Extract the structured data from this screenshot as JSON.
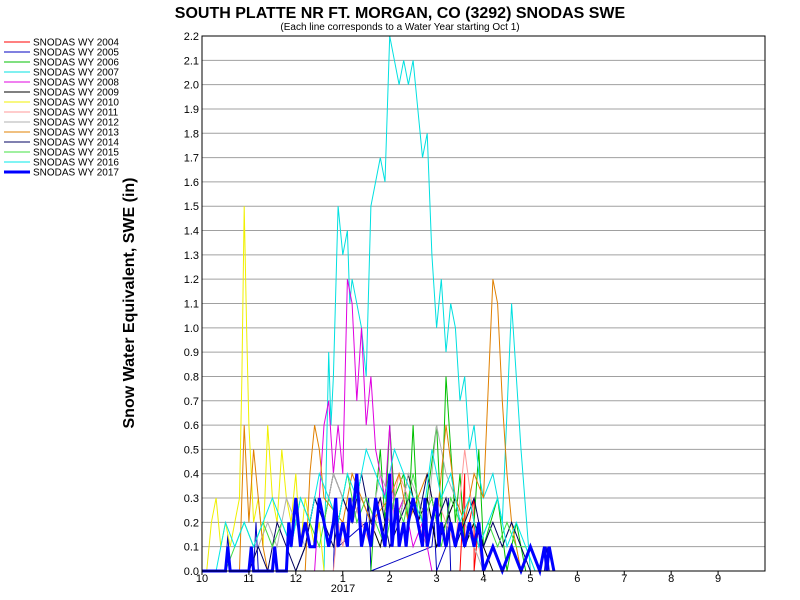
{
  "chart_data": {
    "type": "line",
    "title": "SOUTH PLATTE NR FT. MORGAN, CO (3292) SNODAS SWE",
    "subtitle": "(Each line corresponds to a Water Year starting Oct 1)",
    "xlabel": "",
    "ylabel": "Snow Water Equivalent, SWE (in)",
    "ylim": [
      0,
      2.2
    ],
    "xlim": [
      0,
      12
    ],
    "grid": true,
    "legend_position": "left",
    "y_ticks": [
      "0.0",
      "0.1",
      "0.2",
      "0.3",
      "0.4",
      "0.5",
      "0.6",
      "0.7",
      "0.8",
      "0.9",
      "1.0",
      "1.1",
      "1.2",
      "1.3",
      "1.4",
      "1.5",
      "1.6",
      "1.7",
      "1.8",
      "1.9",
      "2.0",
      "2.1",
      "2.2"
    ],
    "x_ticks": [
      {
        "label": "10",
        "month": 0
      },
      {
        "label": "11",
        "month": 1
      },
      {
        "label": "12",
        "month": 2
      },
      {
        "label": "1",
        "month": 3
      },
      {
        "label": "2",
        "month": 4
      },
      {
        "label": "3",
        "month": 5
      },
      {
        "label": "4",
        "month": 6
      },
      {
        "label": "5",
        "month": 7
      },
      {
        "label": "6",
        "month": 8
      },
      {
        "label": "7",
        "month": 9
      },
      {
        "label": "8",
        "month": 10
      },
      {
        "label": "9",
        "month": 11
      }
    ],
    "x_secondary_label": "2017",
    "series": [
      {
        "name": "SNODAS WY 2004",
        "color": "#ff0000",
        "width": 1,
        "x": [
          5.5,
          5.6,
          5.6,
          5.8,
          5.8,
          5.9,
          6.0,
          6.2
        ],
        "y": [
          0,
          0.4,
          0.1,
          0.3,
          0,
          0.2,
          0,
          0
        ]
      },
      {
        "name": "SNODAS WY 2005",
        "color": "#0000c0",
        "width": 1,
        "x": [
          0,
          0.5,
          0.55,
          0.6,
          1.1,
          1.15,
          1.2,
          2.8,
          2.85,
          2.9,
          3.5,
          3.55,
          3.6,
          4.9,
          4.95,
          5.0,
          5.2,
          5.25,
          5.3,
          7.3,
          7.35,
          7.4
        ],
        "y": [
          0,
          0,
          0.15,
          0,
          0,
          0.2,
          0,
          0,
          0.3,
          0.1,
          0.2,
          0.3,
          0,
          0.1,
          0.2,
          0,
          0.1,
          0.3,
          0,
          0,
          0.1,
          0
        ]
      },
      {
        "name": "SNODAS WY 2006",
        "color": "#00c000",
        "width": 1,
        "x": [
          3.6,
          3.7,
          3.8,
          3.9,
          4.0,
          4.1,
          4.3,
          4.4,
          4.5,
          4.6,
          4.7,
          4.8,
          5.0,
          5.1,
          5.2,
          5.4,
          5.5,
          5.6,
          5.8,
          5.9,
          6.0,
          6.3,
          6.5,
          6.7,
          6.9
        ],
        "y": [
          0,
          0.3,
          0.5,
          0.2,
          0.6,
          0.3,
          0.4,
          0.2,
          0.6,
          0.2,
          0.1,
          0.3,
          0.6,
          0.2,
          0.8,
          0.2,
          0.4,
          0.1,
          0.2,
          0.5,
          0.1,
          0.3,
          0,
          0.2,
          0
        ]
      },
      {
        "name": "SNODAS WY 2007",
        "color": "#00e0e0",
        "width": 1,
        "x": [
          2.6,
          2.7,
          2.75,
          2.8,
          2.9,
          3.0,
          3.1,
          3.15,
          3.2,
          3.4,
          3.5,
          3.6,
          3.8,
          3.9,
          4.0,
          4.1,
          4.2,
          4.3,
          4.4,
          4.5,
          4.6,
          4.7,
          4.8,
          4.9,
          5.0,
          5.1,
          5.2,
          5.3,
          5.4,
          5.5,
          5.6,
          5.7,
          5.8,
          5.9,
          6.0,
          6.2,
          6.4,
          6.6,
          6.8,
          7.0
        ],
        "y": [
          0,
          0.9,
          0.6,
          0.8,
          1.5,
          1.3,
          1.4,
          1.1,
          1.2,
          1.0,
          0.8,
          1.5,
          1.7,
          1.6,
          2.2,
          2.1,
          2.0,
          2.1,
          2.0,
          2.1,
          1.9,
          1.7,
          1.8,
          1.3,
          1.0,
          1.2,
          0.9,
          1.1,
          1.0,
          0.7,
          0.8,
          0.5,
          0.6,
          0.4,
          0.3,
          0.4,
          0.2,
          1.1,
          0.5,
          0
        ]
      },
      {
        "name": "SNODAS WY 2008",
        "color": "#e000e0",
        "width": 1,
        "x": [
          2.4,
          2.5,
          2.6,
          2.7,
          2.8,
          2.9,
          3.0,
          3.1,
          3.2,
          3.3,
          3.4,
          3.5,
          3.6,
          3.7,
          3.8,
          3.9,
          4.0,
          4.1,
          4.3,
          4.5,
          4.7,
          4.9
        ],
        "y": [
          0,
          0.3,
          0.6,
          0.7,
          0.4,
          0.6,
          0.4,
          1.2,
          1.1,
          0.7,
          1.0,
          0.6,
          0.8,
          0.5,
          0.4,
          0.3,
          0.6,
          0.2,
          0.3,
          0.1,
          0.2,
          0
        ]
      },
      {
        "name": "SNODAS WY 2009",
        "color": "#000000",
        "width": 1,
        "x": [
          2.0,
          2.2,
          2.4,
          2.6,
          2.8,
          3.0,
          3.2,
          3.4,
          3.6,
          3.8,
          4.0,
          4.2,
          4.4,
          4.6,
          4.8,
          5.0,
          5.2,
          5.4,
          5.6,
          5.8,
          6.0,
          6.2
        ],
        "y": [
          0,
          0.1,
          0.3,
          0.2,
          0.4,
          0.3,
          0.2,
          0.3,
          0.2,
          0.1,
          0.3,
          0.2,
          0.4,
          0.2,
          0.3,
          0.1,
          0.2,
          0.3,
          0.1,
          0.2,
          0.1,
          0
        ]
      },
      {
        "name": "SNODAS WY 2010",
        "color": "#f0f000",
        "width": 1,
        "x": [
          0.1,
          0.2,
          0.3,
          0.4,
          0.5,
          0.6,
          0.7,
          0.8,
          0.85,
          0.9,
          0.95,
          1.0,
          1.05,
          1.1,
          1.2,
          1.3,
          1.4,
          1.5,
          1.6,
          1.7,
          1.8,
          1.9,
          2.0,
          2.1,
          2.2,
          2.3,
          2.4,
          2.5,
          2.6
        ],
        "y": [
          0,
          0.2,
          0.3,
          0.1,
          0.2,
          0.1,
          0.2,
          0.3,
          0.8,
          1.5,
          1.0,
          0.6,
          0.4,
          0.2,
          0.3,
          0.1,
          0.6,
          0.3,
          0.2,
          0.5,
          0.3,
          0.2,
          0.4,
          0.1,
          0.3,
          0.2,
          0.1,
          0.2,
          0
        ]
      },
      {
        "name": "SNODAS WY 2011",
        "color": "#ff9999",
        "width": 1,
        "x": [
          2.8,
          2.9,
          3.0,
          3.2,
          3.4,
          3.6,
          3.8,
          4.0,
          4.2,
          4.4,
          4.6,
          4.8,
          5.0,
          5.2,
          5.4,
          5.6,
          5.8,
          6.0
        ],
        "y": [
          0,
          0.2,
          0.1,
          0.3,
          0.2,
          0.1,
          0.3,
          0.2,
          0.4,
          0.3,
          0.2,
          0.1,
          0.3,
          0.2,
          0.1,
          0.5,
          0.2,
          0
        ]
      },
      {
        "name": "SNODAS WY 2012",
        "color": "#b0b0b0",
        "width": 1,
        "x": [
          1.0,
          1.2,
          1.4,
          1.6,
          1.8,
          2.0,
          2.2,
          2.4,
          2.6,
          2.8,
          3.0,
          3.2,
          3.4,
          3.6,
          3.8,
          4.0,
          4.2,
          4.4,
          4.6,
          4.8,
          5.0,
          5.2,
          5.4,
          5.6,
          5.8,
          6.0
        ],
        "y": [
          0,
          0.1,
          0.2,
          0.1,
          0.3,
          0.2,
          0.1,
          0.3,
          0.2,
          0.4,
          0.3,
          0.2,
          0.3,
          0.2,
          0.4,
          0.3,
          0.2,
          0.4,
          0.3,
          0.2,
          0.6,
          0.4,
          0.3,
          0.2,
          0.1,
          0
        ]
      },
      {
        "name": "SNODAS WY 2013",
        "color": "#e08000",
        "width": 1,
        "x": [
          0.8,
          0.9,
          1.0,
          1.1,
          1.2,
          1.3,
          1.4,
          2.2,
          2.3,
          2.4,
          2.5,
          2.6,
          3.0,
          3.2,
          3.4,
          3.6,
          4.0,
          4.2,
          4.4,
          4.6,
          4.8,
          5.0,
          5.2,
          5.4,
          5.6,
          5.8,
          6.0,
          6.2,
          6.3,
          6.4,
          6.5,
          6.6,
          6.7,
          6.8
        ],
        "y": [
          0,
          0.6,
          0.2,
          0.5,
          0.3,
          0.1,
          0,
          0,
          0.4,
          0.6,
          0.5,
          0.3,
          0.2,
          0.4,
          0.3,
          0.2,
          0.3,
          0.4,
          0.2,
          0.3,
          0.4,
          0.2,
          0.6,
          0.3,
          0.2,
          0.4,
          0.3,
          1.2,
          1.1,
          0.7,
          0.4,
          0.2,
          0.1,
          0
        ]
      },
      {
        "name": "SNODAS WY 2014",
        "color": "#000060",
        "width": 1,
        "x": [
          1.0,
          1.2,
          1.4,
          1.6,
          1.8,
          2.0,
          2.2,
          2.4,
          2.6,
          2.8,
          3.0,
          3.2,
          3.4,
          3.6,
          3.8,
          4.0,
          4.2,
          4.4,
          4.6,
          4.8,
          5.0,
          5.2,
          5.4,
          5.6,
          5.8,
          6.0,
          6.2,
          6.4,
          6.6,
          6.8,
          7.0
        ],
        "y": [
          0,
          0.1,
          0,
          0.2,
          0.1,
          0,
          0.1,
          0.3,
          0.2,
          0.1,
          0.3,
          0.2,
          0.4,
          0.2,
          0.3,
          0.1,
          0.2,
          0.3,
          0.2,
          0.4,
          0.2,
          0.3,
          0.1,
          0.2,
          0.3,
          0.1,
          0.2,
          0.1,
          0.2,
          0.1,
          0
        ]
      },
      {
        "name": "SNODAS WY 2015",
        "color": "#40e040",
        "width": 1,
        "x": [
          0.5,
          0.7,
          0.9,
          1.1,
          1.3,
          1.5,
          1.7,
          1.9,
          2.1,
          2.3,
          2.5,
          2.7,
          2.9,
          3.1,
          3.3,
          3.5,
          3.7,
          3.9,
          4.1,
          4.3,
          4.5,
          4.7,
          4.9,
          5.1,
          5.3,
          5.5,
          5.7,
          5.9,
          6.1,
          6.3,
          6.5,
          6.7,
          6.9,
          7.1
        ],
        "y": [
          0,
          0.1,
          0.2,
          0.1,
          0.2,
          0.1,
          0.2,
          0.1,
          0.3,
          0.2,
          0.1,
          0.3,
          0.2,
          0.4,
          0.2,
          0.3,
          0.2,
          0.1,
          0.3,
          0.2,
          0.4,
          0.2,
          0.3,
          0.1,
          0.3,
          0.2,
          0.3,
          0.1,
          0.2,
          0.1,
          0.2,
          0.1,
          0.1,
          0
        ]
      },
      {
        "name": "SNODAS WY 2016",
        "color": "#00e8e8",
        "width": 1,
        "x": [
          0.3,
          0.5,
          0.7,
          0.9,
          1.1,
          1.3,
          1.5,
          1.7,
          1.9,
          2.1,
          2.3,
          2.5,
          2.7,
          2.9,
          3.1,
          3.3,
          3.5,
          3.7,
          3.9,
          4.1,
          4.3,
          4.5,
          4.7,
          4.9,
          5.1,
          5.3,
          5.5,
          5.7,
          5.9,
          6.1,
          6.3,
          6.5,
          6.7,
          6.9,
          7.1
        ],
        "y": [
          0,
          0.2,
          0.1,
          0.2,
          0.1,
          0.2,
          0.3,
          0.2,
          0.1,
          0.3,
          0.2,
          0.4,
          0.3,
          0.2,
          0.4,
          0.3,
          0.5,
          0.4,
          0.3,
          0.5,
          0.4,
          0.3,
          0.2,
          0.5,
          0.3,
          0.4,
          0.2,
          0.3,
          0.1,
          0.2,
          0.3,
          0.1,
          0.2,
          0.1,
          0
        ]
      },
      {
        "name": "SNODAS WY 2017",
        "color": "#0000ff",
        "width": 3,
        "x": [
          0,
          0.5,
          0.55,
          0.6,
          1.0,
          1.05,
          1.1,
          1.5,
          1.55,
          1.6,
          1.8,
          1.85,
          1.9,
          2.0,
          2.1,
          2.2,
          2.3,
          2.4,
          2.45,
          2.5,
          2.6,
          2.7,
          2.8,
          2.85,
          2.9,
          3.0,
          3.1,
          3.15,
          3.2,
          3.3,
          3.4,
          3.5,
          3.6,
          3.7,
          3.8,
          3.9,
          4.0,
          4.05,
          4.1,
          4.15,
          4.2,
          4.3,
          4.35,
          4.4,
          4.5,
          4.6,
          4.7,
          4.75,
          4.8,
          4.9,
          5.0,
          5.05,
          5.1,
          5.2,
          5.3,
          5.4,
          5.5,
          5.6,
          5.7,
          5.8,
          5.9,
          6.0,
          6.2,
          6.4,
          6.6,
          6.8,
          7.0,
          7.2,
          7.3,
          7.35,
          7.4,
          7.5
        ],
        "y": [
          0,
          0,
          0.1,
          0,
          0,
          0.1,
          0,
          0,
          0.1,
          0,
          0,
          0.2,
          0.1,
          0.3,
          0.1,
          0.2,
          0.1,
          0.1,
          0.2,
          0.3,
          0.2,
          0.1,
          0.2,
          0.3,
          0.1,
          0.2,
          0.1,
          0.3,
          0.2,
          0.4,
          0.1,
          0.2,
          0.1,
          0.3,
          0.2,
          0.1,
          0.4,
          0.1,
          0.2,
          0.3,
          0.1,
          0.2,
          0.1,
          0.2,
          0.3,
          0.2,
          0.1,
          0.3,
          0.1,
          0.2,
          0.3,
          0.1,
          0.2,
          0.1,
          0.2,
          0.1,
          0.2,
          0.1,
          0.2,
          0.1,
          0.2,
          0,
          0.1,
          0,
          0.1,
          0,
          0.1,
          0,
          0.1,
          0,
          0.1,
          0
        ]
      }
    ]
  }
}
